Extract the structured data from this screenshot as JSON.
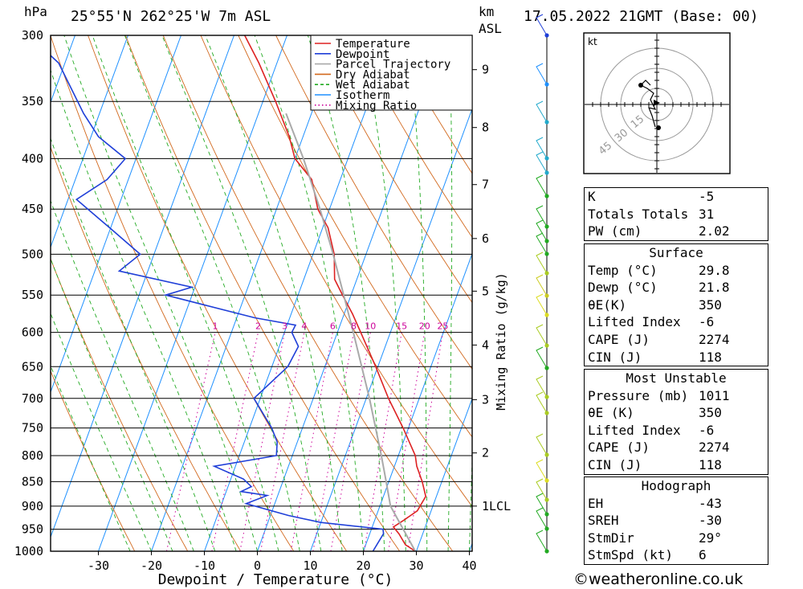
{
  "header": {
    "pressure_unit": "hPa",
    "location": "25°55'N  262°25'W  7m  ASL",
    "height_unit": "km",
    "height_unit2": "ASL",
    "datetime": "17.05.2022  21GMT  (Base: 00)"
  },
  "chart_data": {
    "type": "line",
    "title": "",
    "xlabel": "Dewpoint / Temperature (°C)",
    "ylabel": "hPa",
    "right_label": "Mixing Ratio (g/kg)",
    "xlim": [
      -40,
      40
    ],
    "ylim": [
      1000,
      300
    ],
    "x_ticks": [
      -30,
      -20,
      -10,
      0,
      10,
      20,
      30,
      40
    ],
    "pressure_ticks": [
      300,
      350,
      400,
      450,
      500,
      550,
      600,
      650,
      700,
      750,
      800,
      850,
      900,
      950,
      1000
    ],
    "height_ticks_km": [
      {
        "km": "9",
        "p": 325
      },
      {
        "km": "8",
        "p": 372
      },
      {
        "km": "7",
        "p": 425
      },
      {
        "km": "6",
        "p": 482
      },
      {
        "km": "5",
        "p": 545
      },
      {
        "km": "4",
        "p": 618
      },
      {
        "km": "3",
        "p": 702
      },
      {
        "km": "2",
        "p": 795
      },
      {
        "km": "1LCL",
        "p": 900
      }
    ],
    "mixing_ratio_labels": [
      "1",
      "2",
      "3",
      "4",
      "6",
      "8",
      "10",
      "15",
      "20",
      "25"
    ],
    "legend": [
      "Temperature",
      "Dewpoint",
      "Parcel Trajectory",
      "Dry Adiabat",
      "Wet Adiabat",
      "Isotherm",
      "Mixing Ratio"
    ],
    "colors": {
      "temperature": "#dd2222",
      "dewpoint": "#1f3fd8",
      "parcel": "#a9a9a9",
      "dry_adiabat": "#d2691e",
      "wet_adiabat": "#22aa22",
      "isotherm": "#1e90ff",
      "mixing_ratio": "#cc0099"
    },
    "series": [
      {
        "name": "Temperature",
        "points": [
          [
            1000,
            29.8
          ],
          [
            985,
            27.5
          ],
          [
            960,
            25.5
          ],
          [
            945,
            24.0
          ],
          [
            930,
            25.5
          ],
          [
            910,
            27.4
          ],
          [
            880,
            28.0
          ],
          [
            850,
            26.3
          ],
          [
            820,
            24.2
          ],
          [
            800,
            23.2
          ],
          [
            750,
            19.0
          ],
          [
            700,
            14.2
          ],
          [
            650,
            9.6
          ],
          [
            600,
            4.4
          ],
          [
            575,
            1.6
          ],
          [
            550,
            -1.6
          ],
          [
            530,
            -4.2
          ],
          [
            500,
            -6.0
          ],
          [
            470,
            -9.0
          ],
          [
            450,
            -12.2
          ],
          [
            420,
            -15.4
          ],
          [
            400,
            -20.0
          ],
          [
            380,
            -22.6
          ],
          [
            350,
            -27.6
          ],
          [
            320,
            -33.4
          ],
          [
            300,
            -38.0
          ]
        ]
      },
      {
        "name": "Dewpoint",
        "points": [
          [
            1000,
            21.8
          ],
          [
            960,
            22.6
          ],
          [
            950,
            22.2
          ],
          [
            935,
            10.0
          ],
          [
            920,
            3.4
          ],
          [
            895,
            -5.4
          ],
          [
            878,
            -2.0
          ],
          [
            870,
            -7.2
          ],
          [
            860,
            -5.6
          ],
          [
            845,
            -7.6
          ],
          [
            820,
            -14.0
          ],
          [
            800,
            -3.0
          ],
          [
            775,
            -3.8
          ],
          [
            750,
            -5.8
          ],
          [
            700,
            -11.2
          ],
          [
            650,
            -7.0
          ],
          [
            620,
            -6.4
          ],
          [
            600,
            -8.6
          ],
          [
            590,
            -8.4
          ],
          [
            580,
            -16.6
          ],
          [
            550,
            -35.0
          ],
          [
            540,
            -30.6
          ],
          [
            520,
            -45.4
          ],
          [
            500,
            -42.6
          ],
          [
            470,
            -50.2
          ],
          [
            440,
            -58.4
          ],
          [
            420,
            -54.0
          ],
          [
            400,
            -52.0
          ],
          [
            380,
            -58.6
          ],
          [
            360,
            -63.0
          ],
          [
            320,
            -71.2
          ],
          [
            305,
            -76.8
          ],
          [
            300,
            -80.4
          ]
        ]
      },
      {
        "name": "Parcel Trajectory",
        "points": [
          [
            1000,
            29.8
          ],
          [
            900,
            22.0
          ],
          [
            850,
            19.5
          ],
          [
            800,
            16.8
          ],
          [
            700,
            10.6
          ],
          [
            600,
            3.0
          ],
          [
            500,
            -6.2
          ],
          [
            450,
            -11.8
          ],
          [
            400,
            -18.4
          ],
          [
            360,
            -24.8
          ]
        ]
      }
    ]
  },
  "indices": {
    "rows": [
      {
        "label": "K",
        "value": "-5"
      },
      {
        "label": "Totals Totals",
        "value": "31"
      },
      {
        "label": "PW (cm)",
        "value": "2.02"
      }
    ]
  },
  "surface": {
    "title": "Surface",
    "rows": [
      {
        "label": "Temp (°C)",
        "value": "29.8"
      },
      {
        "label": "Dewp (°C)",
        "value": "21.8"
      },
      {
        "label": "θE(K)",
        "value": "350"
      },
      {
        "label": "Lifted Index",
        "value": "-6"
      },
      {
        "label": "CAPE (J)",
        "value": "2274"
      },
      {
        "label": "CIN (J)",
        "value": "118"
      }
    ]
  },
  "most_unstable": {
    "title": "Most Unstable",
    "rows": [
      {
        "label": "Pressure (mb)",
        "value": "1011"
      },
      {
        "label": "θE (K)",
        "value": "350"
      },
      {
        "label": "Lifted Index",
        "value": "-6"
      },
      {
        "label": "CAPE (J)",
        "value": "2274"
      },
      {
        "label": "CIN (J)",
        "value": "118"
      }
    ]
  },
  "hodograph": {
    "title": "Hodograph",
    "unit_label": "kt",
    "ring_labels": [
      "15",
      "30",
      "45"
    ],
    "rows": [
      {
        "label": "EH",
        "value": "-43"
      },
      {
        "label": "SREH",
        "value": "-30"
      },
      {
        "label": "StmDir",
        "value": "29°"
      },
      {
        "label": "StmSpd (kt)",
        "value": "6"
      }
    ]
  },
  "credit": "©weatheronline.co.uk"
}
